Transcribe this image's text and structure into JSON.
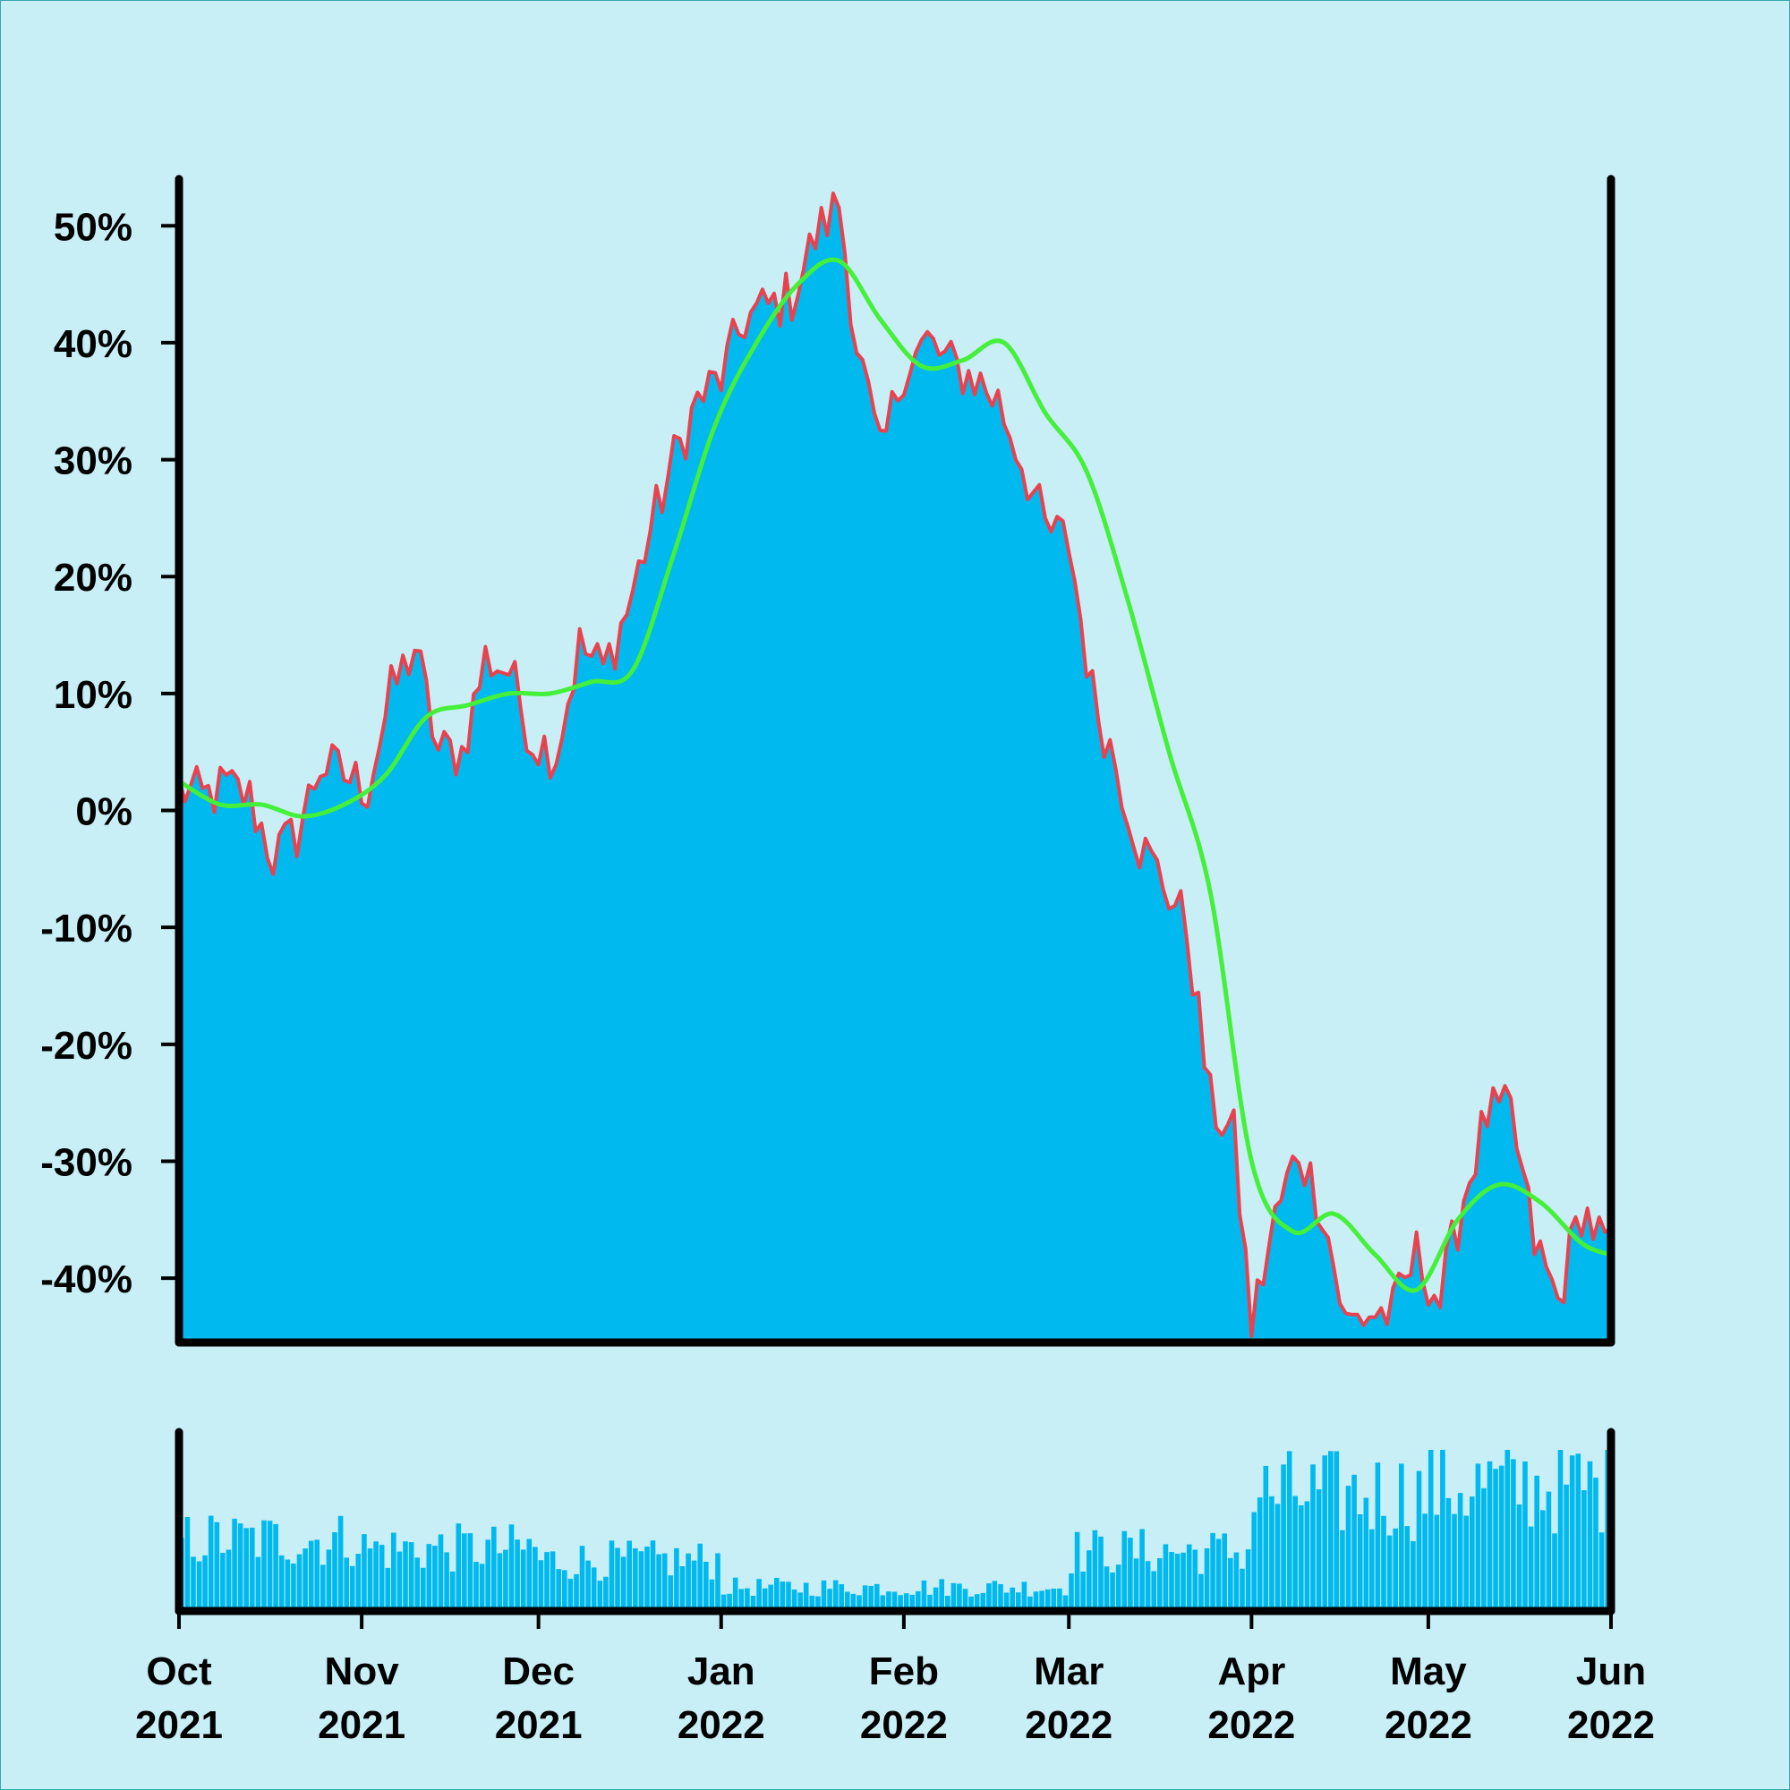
{
  "colors": {
    "background": "#c8eef6",
    "area_fill": "#00b9ef",
    "price_line": "#e8424f",
    "moving_average": "#44f03a",
    "volume_bar": "#00b9ef",
    "axis": "#000000"
  },
  "chart_data": [
    {
      "type": "area",
      "x_is_dates": true,
      "xlim": [
        "2021-10-01",
        "2022-06-01"
      ],
      "ylim": [
        -45.5,
        54
      ],
      "grid": false,
      "legend": "none",
      "yticks": [
        {
          "value": 50,
          "label": "50%"
        },
        {
          "value": 40,
          "label": "40%"
        },
        {
          "value": 30,
          "label": "30%"
        },
        {
          "value": 20,
          "label": "20%"
        },
        {
          "value": 10,
          "label": "10%"
        },
        {
          "value": 0,
          "label": "0%"
        },
        {
          "value": -10,
          "label": "-10%"
        },
        {
          "value": -20,
          "label": "-20%"
        },
        {
          "value": -30,
          "label": "-30%"
        },
        {
          "value": -40,
          "label": "-40%"
        }
      ],
      "series": [
        {
          "role": "price (% change)",
          "x": [
            "2021-10-01",
            "2021-10-05",
            "2021-10-09",
            "2021-10-13",
            "2021-10-17",
            "2021-10-21",
            "2021-10-25",
            "2021-10-29",
            "2021-11-02",
            "2021-11-06",
            "2021-11-10",
            "2021-11-14",
            "2021-11-18",
            "2021-11-22",
            "2021-11-26",
            "2021-11-30",
            "2021-12-04",
            "2021-12-08",
            "2021-12-12",
            "2021-12-16",
            "2021-12-20",
            "2021-12-24",
            "2021-12-28",
            "2022-01-01",
            "2022-01-05",
            "2022-01-09",
            "2022-01-13",
            "2022-01-17",
            "2022-01-21",
            "2022-01-24",
            "2022-01-28",
            "2022-02-01",
            "2022-02-05",
            "2022-02-09",
            "2022-02-13",
            "2022-02-17",
            "2022-02-21",
            "2022-02-25",
            "2022-03-01",
            "2022-03-05",
            "2022-03-09",
            "2022-03-13",
            "2022-03-17",
            "2022-03-21",
            "2022-03-25",
            "2022-03-29",
            "2022-04-01",
            "2022-04-05",
            "2022-04-09",
            "2022-04-13",
            "2022-04-17",
            "2022-04-21",
            "2022-04-25",
            "2022-04-29",
            "2022-05-03",
            "2022-05-07",
            "2022-05-11",
            "2022-05-15",
            "2022-05-19",
            "2022-05-23",
            "2022-05-27",
            "2022-06-01"
          ],
          "y": [
            2,
            1,
            2,
            1,
            -4,
            -2,
            4,
            3,
            2,
            10,
            14,
            5,
            5,
            13,
            12,
            6,
            5,
            14,
            12,
            17,
            24,
            30,
            35,
            37,
            42,
            43,
            44,
            49,
            52,
            40,
            30,
            38,
            40,
            38,
            37,
            35,
            30,
            24,
            23,
            10,
            4,
            -3,
            -6,
            -10,
            -25,
            -28,
            -44,
            -35,
            -29,
            -34,
            -44,
            -43,
            -43,
            -38,
            -42,
            -33,
            -26,
            -26,
            -37,
            -42,
            -34,
            -38
          ]
        },
        {
          "role": "moving average",
          "x": [
            "2021-10-01",
            "2021-10-08",
            "2021-10-15",
            "2021-10-22",
            "2021-10-29",
            "2021-11-05",
            "2021-11-12",
            "2021-11-19",
            "2021-11-26",
            "2021-12-03",
            "2021-12-10",
            "2021-12-17",
            "2021-12-24",
            "2021-12-31",
            "2022-01-07",
            "2022-01-14",
            "2022-01-21",
            "2022-01-28",
            "2022-02-04",
            "2022-02-11",
            "2022-02-18",
            "2022-02-25",
            "2022-03-04",
            "2022-03-11",
            "2022-03-18",
            "2022-03-25",
            "2022-04-01",
            "2022-04-08",
            "2022-04-15",
            "2022-04-22",
            "2022-04-29",
            "2022-05-06",
            "2022-05-13",
            "2022-05-20",
            "2022-05-27",
            "2022-06-01"
          ],
          "y": [
            2.5,
            0.5,
            0.5,
            -0.5,
            0.5,
            3,
            8,
            9,
            10,
            10,
            11,
            12,
            22,
            33,
            40,
            45,
            47,
            42,
            38,
            38.5,
            40,
            34,
            29,
            18,
            5,
            -7,
            -30,
            -36,
            -34.5,
            -38,
            -41,
            -35,
            -32,
            -33.5,
            -37,
            -38
          ]
        }
      ]
    },
    {
      "type": "bar",
      "role": "volume",
      "x_is_dates": true,
      "xlim": [
        "2021-10-01",
        "2022-06-01"
      ],
      "xticks": [
        {
          "date": "2021-10-01",
          "month": "Oct",
          "year": "2021"
        },
        {
          "date": "2021-11-01",
          "month": "Nov",
          "year": "2021"
        },
        {
          "date": "2021-12-01",
          "month": "Dec",
          "year": "2021"
        },
        {
          "date": "2022-01-01",
          "month": "Jan",
          "year": "2022"
        },
        {
          "date": "2022-02-01",
          "month": "Feb",
          "year": "2022"
        },
        {
          "date": "2022-03-01",
          "month": "Mar",
          "year": "2022"
        },
        {
          "date": "2022-04-01",
          "month": "Apr",
          "year": "2022"
        },
        {
          "date": "2022-05-01",
          "month": "May",
          "year": "2022"
        },
        {
          "date": "2022-06-01",
          "month": "Jun",
          "year": "2022"
        }
      ],
      "ylim": [
        0,
        1
      ],
      "relative_level_by_month": {
        "2021-10": 0.48,
        "2021-11": 0.42,
        "2021-12": 0.34,
        "2022-01": 0.16,
        "2022-02": 0.16,
        "2022-03": 0.4,
        "2022-04": 0.78,
        "2022-05": 0.84
      }
    }
  ]
}
